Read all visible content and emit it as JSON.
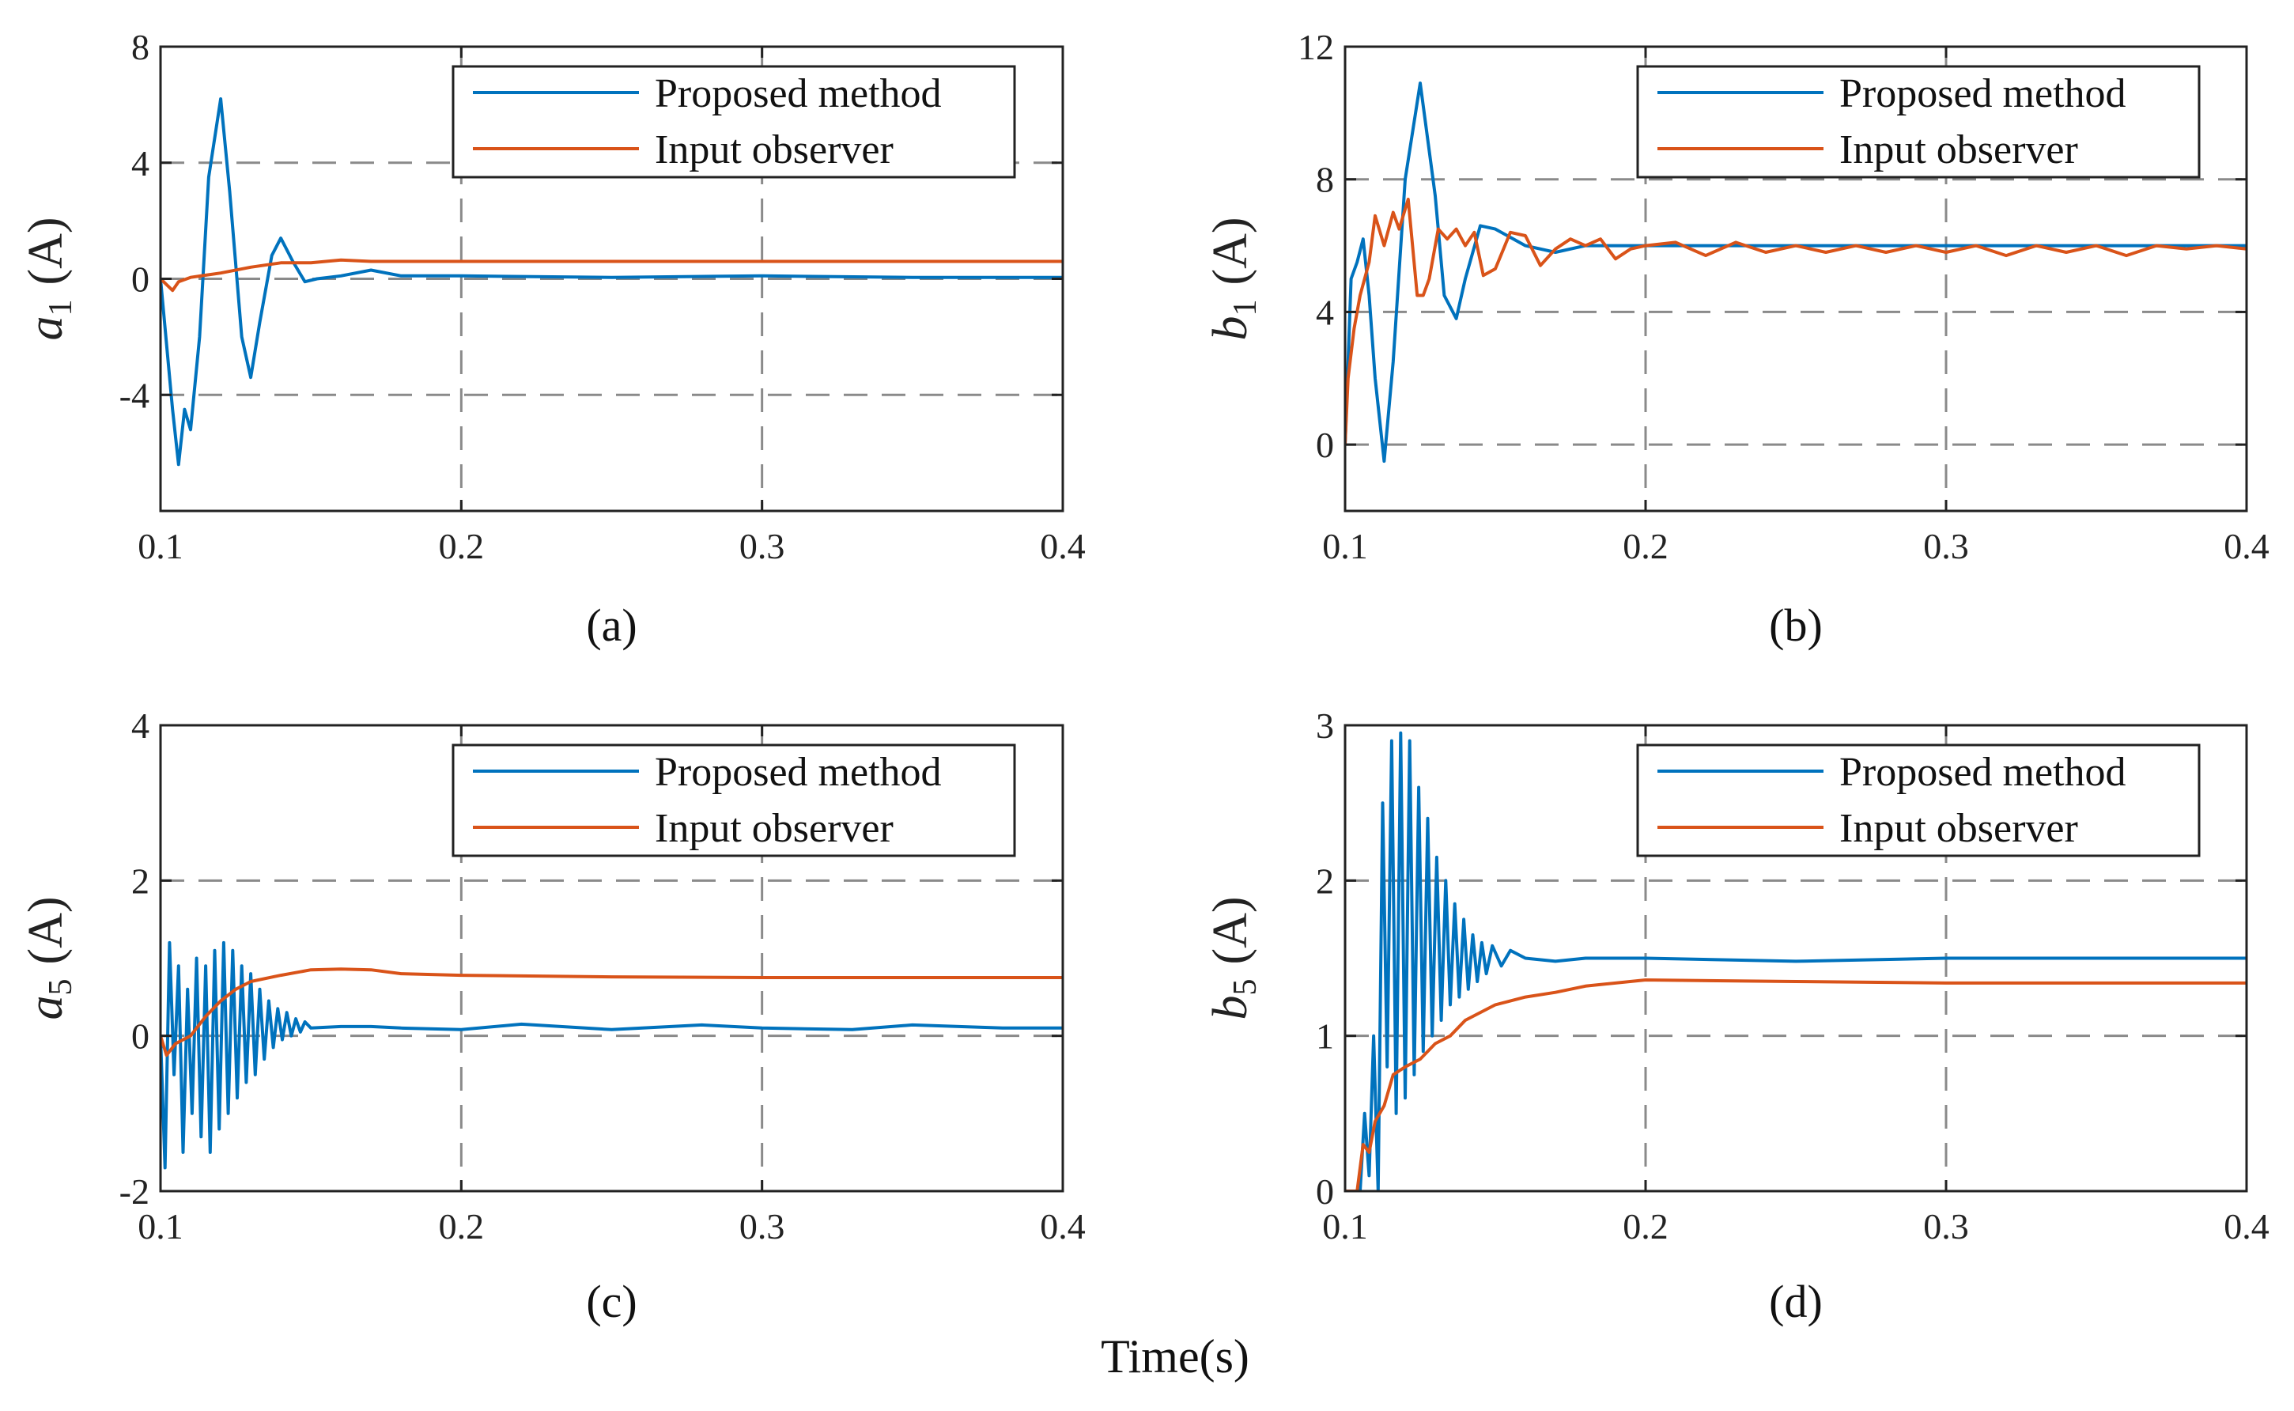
{
  "chart_data": [
    {
      "id": "a",
      "type": "line",
      "caption": "(a)",
      "ylabel_var": "a",
      "ylabel_sub": "1",
      "ylabel_unit": "(A)",
      "xlim": [
        0.1,
        0.4
      ],
      "ylim": [
        -8,
        8
      ],
      "xticks": [
        0.1,
        0.2,
        0.3,
        0.4
      ],
      "xtick_labels": [
        "0.1",
        "0.2",
        "0.3",
        "0.4"
      ],
      "yticks": [
        -4,
        0,
        4,
        8
      ],
      "ytick_labels": [
        "-4",
        "0",
        "4",
        "8"
      ],
      "legend": [
        "Proposed method",
        "Input observer"
      ],
      "series": [
        {
          "name": "Proposed method",
          "color": "#0072BD",
          "x": [
            0.1,
            0.104,
            0.106,
            0.108,
            0.11,
            0.113,
            0.116,
            0.12,
            0.123,
            0.127,
            0.13,
            0.133,
            0.137,
            0.14,
            0.144,
            0.148,
            0.152,
            0.16,
            0.17,
            0.18,
            0.2,
            0.25,
            0.3,
            0.35,
            0.4
          ],
          "y": [
            0,
            -4.5,
            -6.4,
            -4.5,
            -5.2,
            -2.0,
            3.5,
            6.2,
            3.0,
            -2.0,
            -3.4,
            -1.5,
            0.8,
            1.4,
            0.6,
            -0.1,
            0.0,
            0.1,
            0.3,
            0.1,
            0.1,
            0.05,
            0.1,
            0.05,
            0.05
          ]
        },
        {
          "name": "Input observer",
          "color": "#D95319",
          "x": [
            0.1,
            0.102,
            0.104,
            0.106,
            0.11,
            0.12,
            0.13,
            0.14,
            0.15,
            0.16,
            0.17,
            0.2,
            0.25,
            0.3,
            0.35,
            0.4
          ],
          "y": [
            0,
            -0.2,
            -0.4,
            -0.1,
            0.05,
            0.2,
            0.4,
            0.55,
            0.55,
            0.65,
            0.6,
            0.6,
            0.6,
            0.6,
            0.6,
            0.6
          ]
        }
      ]
    },
    {
      "id": "b",
      "type": "line",
      "caption": "(b)",
      "ylabel_var": "b",
      "ylabel_sub": "1",
      "ylabel_unit": "(A)",
      "xlim": [
        0.1,
        0.4
      ],
      "ylim": [
        -2,
        12
      ],
      "xticks": [
        0.1,
        0.2,
        0.3,
        0.4
      ],
      "xtick_labels": [
        "0.1",
        "0.2",
        "0.3",
        "0.4"
      ],
      "yticks": [
        0,
        4,
        8,
        12
      ],
      "ytick_labels": [
        "0",
        "4",
        "8",
        "12"
      ],
      "legend": [
        "Proposed method",
        "Input observer"
      ],
      "series": [
        {
          "name": "Proposed method",
          "color": "#0072BD",
          "x": [
            0.1,
            0.102,
            0.104,
            0.106,
            0.108,
            0.11,
            0.113,
            0.116,
            0.12,
            0.125,
            0.13,
            0.133,
            0.137,
            0.14,
            0.145,
            0.15,
            0.16,
            0.17,
            0.18,
            0.2,
            0.25,
            0.3,
            0.35,
            0.4
          ],
          "y": [
            0,
            5.0,
            5.5,
            6.2,
            4.5,
            2.0,
            -0.5,
            2.5,
            8.0,
            10.9,
            7.5,
            4.5,
            3.8,
            5.0,
            6.6,
            6.5,
            6.0,
            5.8,
            6.0,
            6.0,
            6.0,
            6.0,
            6.0,
            6.0
          ]
        },
        {
          "name": "Input observer",
          "color": "#D95319",
          "x": [
            0.1,
            0.101,
            0.103,
            0.105,
            0.108,
            0.11,
            0.113,
            0.116,
            0.118,
            0.121,
            0.124,
            0.126,
            0.128,
            0.131,
            0.134,
            0.137,
            0.14,
            0.143,
            0.146,
            0.15,
            0.155,
            0.16,
            0.165,
            0.17,
            0.175,
            0.18,
            0.185,
            0.19,
            0.195,
            0.2,
            0.21,
            0.22,
            0.23,
            0.24,
            0.25,
            0.26,
            0.27,
            0.28,
            0.29,
            0.3,
            0.31,
            0.32,
            0.33,
            0.34,
            0.35,
            0.36,
            0.37,
            0.38,
            0.39,
            0.4
          ],
          "y": [
            0,
            2.0,
            3.5,
            4.5,
            5.5,
            6.9,
            6.0,
            7.0,
            6.5,
            7.4,
            4.5,
            4.5,
            5.0,
            6.5,
            6.2,
            6.5,
            6.0,
            6.4,
            5.1,
            5.3,
            6.4,
            6.3,
            5.4,
            5.9,
            6.2,
            6.0,
            6.2,
            5.6,
            5.9,
            6.0,
            6.1,
            5.7,
            6.1,
            5.8,
            6.0,
            5.8,
            6.0,
            5.8,
            6.0,
            5.8,
            6.0,
            5.7,
            6.0,
            5.8,
            6.0,
            5.7,
            6.0,
            5.9,
            6.0,
            5.9
          ]
        }
      ]
    },
    {
      "id": "c",
      "type": "line",
      "caption": "(c)",
      "ylabel_var": "a",
      "ylabel_sub": "5",
      "ylabel_unit": "(A)",
      "xlim": [
        0.1,
        0.4
      ],
      "ylim": [
        -2,
        4
      ],
      "xticks": [
        0.1,
        0.2,
        0.3,
        0.4
      ],
      "xtick_labels": [
        "0.1",
        "0.2",
        "0.3",
        "0.4"
      ],
      "yticks": [
        -2,
        0,
        2,
        4
      ],
      "ytick_labels": [
        "-2",
        "0",
        "2",
        "4"
      ],
      "legend": [
        "Proposed method",
        "Input observer"
      ],
      "series": [
        {
          "name": "Proposed method",
          "color": "#0072BD",
          "x": [
            0.1,
            0.1015,
            0.103,
            0.1045,
            0.106,
            0.1075,
            0.109,
            0.1105,
            0.112,
            0.1135,
            0.115,
            0.1165,
            0.118,
            0.1195,
            0.121,
            0.1225,
            0.124,
            0.1255,
            0.127,
            0.1285,
            0.13,
            0.1315,
            0.133,
            0.1345,
            0.136,
            0.1375,
            0.139,
            0.1405,
            0.142,
            0.1435,
            0.145,
            0.1465,
            0.148,
            0.15,
            0.16,
            0.17,
            0.18,
            0.2,
            0.22,
            0.25,
            0.28,
            0.3,
            0.33,
            0.35,
            0.38,
            0.4
          ],
          "y": [
            0,
            -1.7,
            1.2,
            -0.5,
            0.9,
            -1.5,
            0.6,
            -1.0,
            1.0,
            -1.3,
            0.9,
            -1.5,
            1.1,
            -1.2,
            1.2,
            -1.0,
            1.1,
            -0.8,
            0.9,
            -0.6,
            0.8,
            -0.5,
            0.6,
            -0.3,
            0.45,
            -0.15,
            0.35,
            -0.05,
            0.3,
            0.0,
            0.22,
            0.05,
            0.18,
            0.1,
            0.12,
            0.12,
            0.1,
            0.08,
            0.15,
            0.08,
            0.14,
            0.1,
            0.08,
            0.14,
            0.1,
            0.1
          ]
        },
        {
          "name": "Input observer",
          "color": "#D95319",
          "x": [
            0.1,
            0.102,
            0.105,
            0.11,
            0.115,
            0.12,
            0.125,
            0.13,
            0.14,
            0.15,
            0.16,
            0.17,
            0.18,
            0.2,
            0.25,
            0.3,
            0.35,
            0.4
          ],
          "y": [
            0,
            -0.25,
            -0.1,
            0.0,
            0.25,
            0.45,
            0.6,
            0.7,
            0.78,
            0.85,
            0.86,
            0.85,
            0.8,
            0.78,
            0.76,
            0.75,
            0.75,
            0.75
          ]
        }
      ]
    },
    {
      "id": "d",
      "type": "line",
      "caption": "(d)",
      "ylabel_var": "b",
      "ylabel_sub": "5",
      "ylabel_unit": "(A)",
      "xlim": [
        0.1,
        0.4
      ],
      "ylim": [
        0,
        3
      ],
      "xticks": [
        0.1,
        0.2,
        0.3,
        0.4
      ],
      "xtick_labels": [
        "0.1",
        "0.2",
        "0.3",
        "0.4"
      ],
      "yticks": [
        0,
        1,
        2,
        3
      ],
      "ytick_labels": [
        "0",
        "1",
        "2",
        "3"
      ],
      "legend": [
        "Proposed method",
        "Input observer"
      ],
      "series": [
        {
          "name": "Proposed method",
          "color": "#0072BD",
          "x": [
            0.1,
            0.105,
            0.1065,
            0.108,
            0.1095,
            0.111,
            0.1125,
            0.114,
            0.1155,
            0.117,
            0.1185,
            0.12,
            0.1215,
            0.123,
            0.1245,
            0.126,
            0.1275,
            0.129,
            0.1305,
            0.132,
            0.1335,
            0.135,
            0.1365,
            0.138,
            0.1395,
            0.141,
            0.1425,
            0.144,
            0.1455,
            0.147,
            0.149,
            0.152,
            0.155,
            0.16,
            0.17,
            0.18,
            0.2,
            0.25,
            0.3,
            0.35,
            0.4
          ],
          "y": [
            0,
            0.0,
            0.5,
            0.1,
            1.0,
            0.0,
            2.5,
            0.8,
            2.9,
            0.5,
            2.95,
            0.6,
            2.9,
            0.75,
            2.6,
            0.9,
            2.4,
            1.0,
            2.15,
            1.1,
            2.0,
            1.2,
            1.85,
            1.25,
            1.75,
            1.3,
            1.65,
            1.35,
            1.6,
            1.4,
            1.58,
            1.45,
            1.55,
            1.5,
            1.48,
            1.5,
            1.5,
            1.48,
            1.5,
            1.5,
            1.5
          ]
        },
        {
          "name": "Input observer",
          "color": "#D95319",
          "x": [
            0.1,
            0.104,
            0.106,
            0.108,
            0.11,
            0.113,
            0.116,
            0.12,
            0.125,
            0.13,
            0.135,
            0.14,
            0.15,
            0.16,
            0.17,
            0.18,
            0.2,
            0.25,
            0.3,
            0.35,
            0.4
          ],
          "y": [
            0,
            0.0,
            0.3,
            0.25,
            0.45,
            0.55,
            0.75,
            0.8,
            0.85,
            0.95,
            1.0,
            1.1,
            1.2,
            1.25,
            1.28,
            1.32,
            1.36,
            1.35,
            1.34,
            1.34,
            1.34
          ]
        }
      ]
    }
  ],
  "xlabel": "Time(s)"
}
